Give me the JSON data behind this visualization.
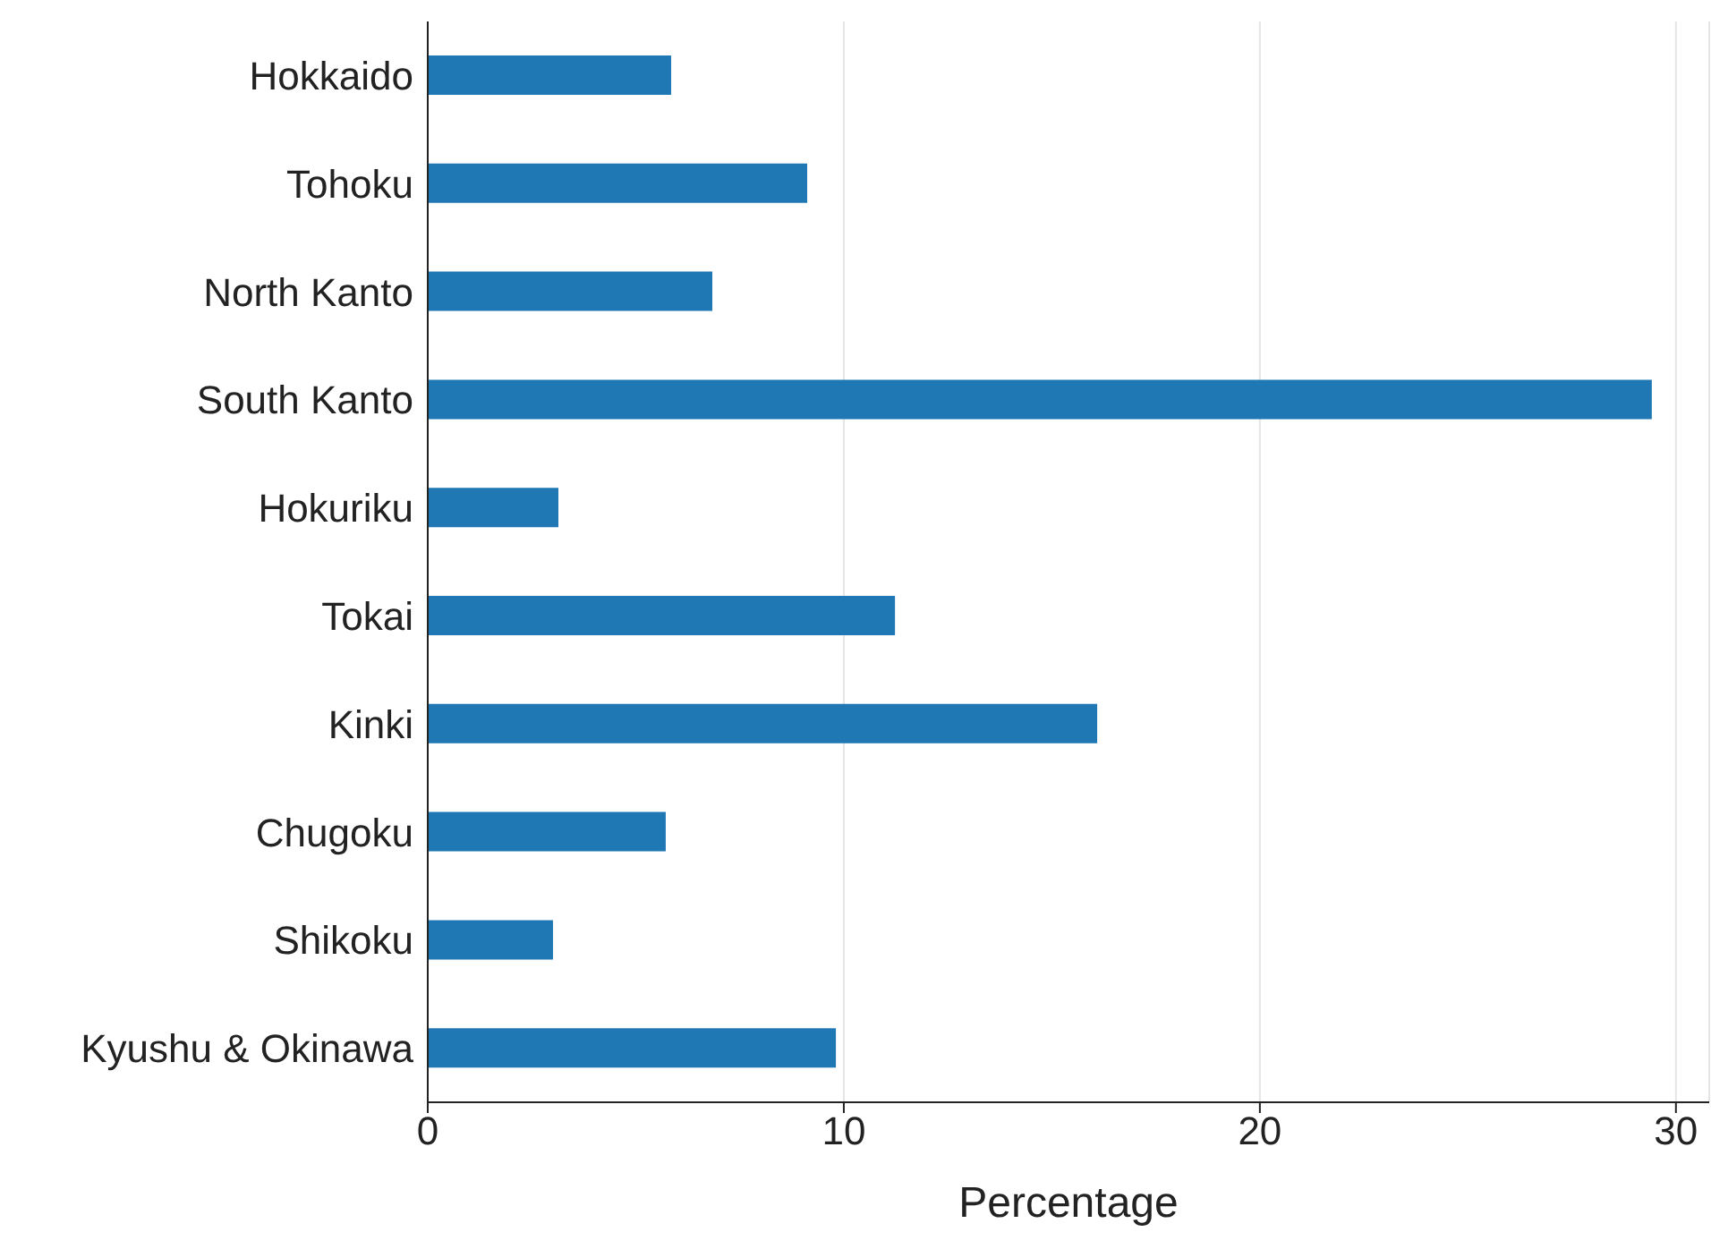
{
  "chart_data": {
    "type": "bar",
    "orientation": "horizontal",
    "xlabel": "Percentage",
    "categories": [
      "Hokkaido",
      "Tohoku",
      "North Kanto",
      "South Kanto",
      "Hokuriku",
      "Tokai",
      "Kinki",
      "Chugoku",
      "Shikoku",
      "Kyushu & Okinawa"
    ],
    "values": [
      5.85,
      9.12,
      6.84,
      29.42,
      3.14,
      11.23,
      16.09,
      5.72,
      3.01,
      9.81
    ],
    "color": "#1f77b4",
    "xlim": [
      0,
      30.8
    ],
    "xticks": [
      0,
      10,
      20,
      30
    ],
    "grid": "x"
  }
}
